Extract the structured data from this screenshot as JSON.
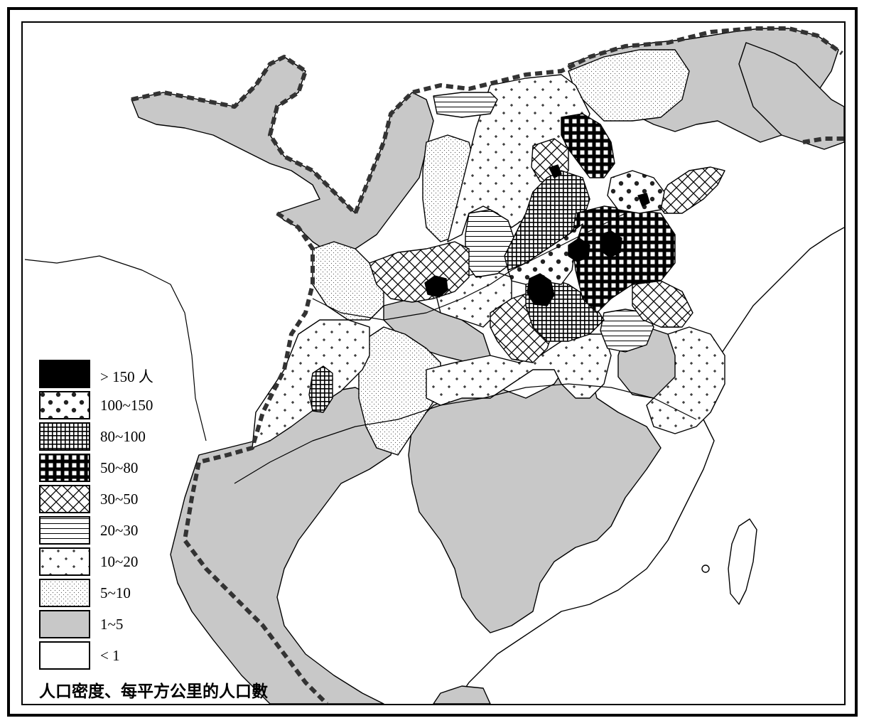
{
  "legend": {
    "items": [
      {
        "label": "> 150 人",
        "pattern": "solid-black"
      },
      {
        "label": "100~150",
        "pattern": "large-dots"
      },
      {
        "label": "80~100",
        "pattern": "fine-grid"
      },
      {
        "label": "50~80",
        "pattern": "coarse-grid"
      },
      {
        "label": "30~50",
        "pattern": "crosshatch"
      },
      {
        "label": "20~30",
        "pattern": "horizontal-lines"
      },
      {
        "label": "10~20",
        "pattern": "plus-marks"
      },
      {
        "label": "5~10",
        "pattern": "fine-stipple"
      },
      {
        "label": "1~5",
        "pattern": "solid-gray"
      },
      {
        "label": "< 1",
        "pattern": "blank"
      }
    ]
  },
  "caption": "人口密度、每平方公里的人口數",
  "colors": {
    "land_gray": "#c8c8c8",
    "line": "#000000",
    "background": "#ffffff"
  }
}
